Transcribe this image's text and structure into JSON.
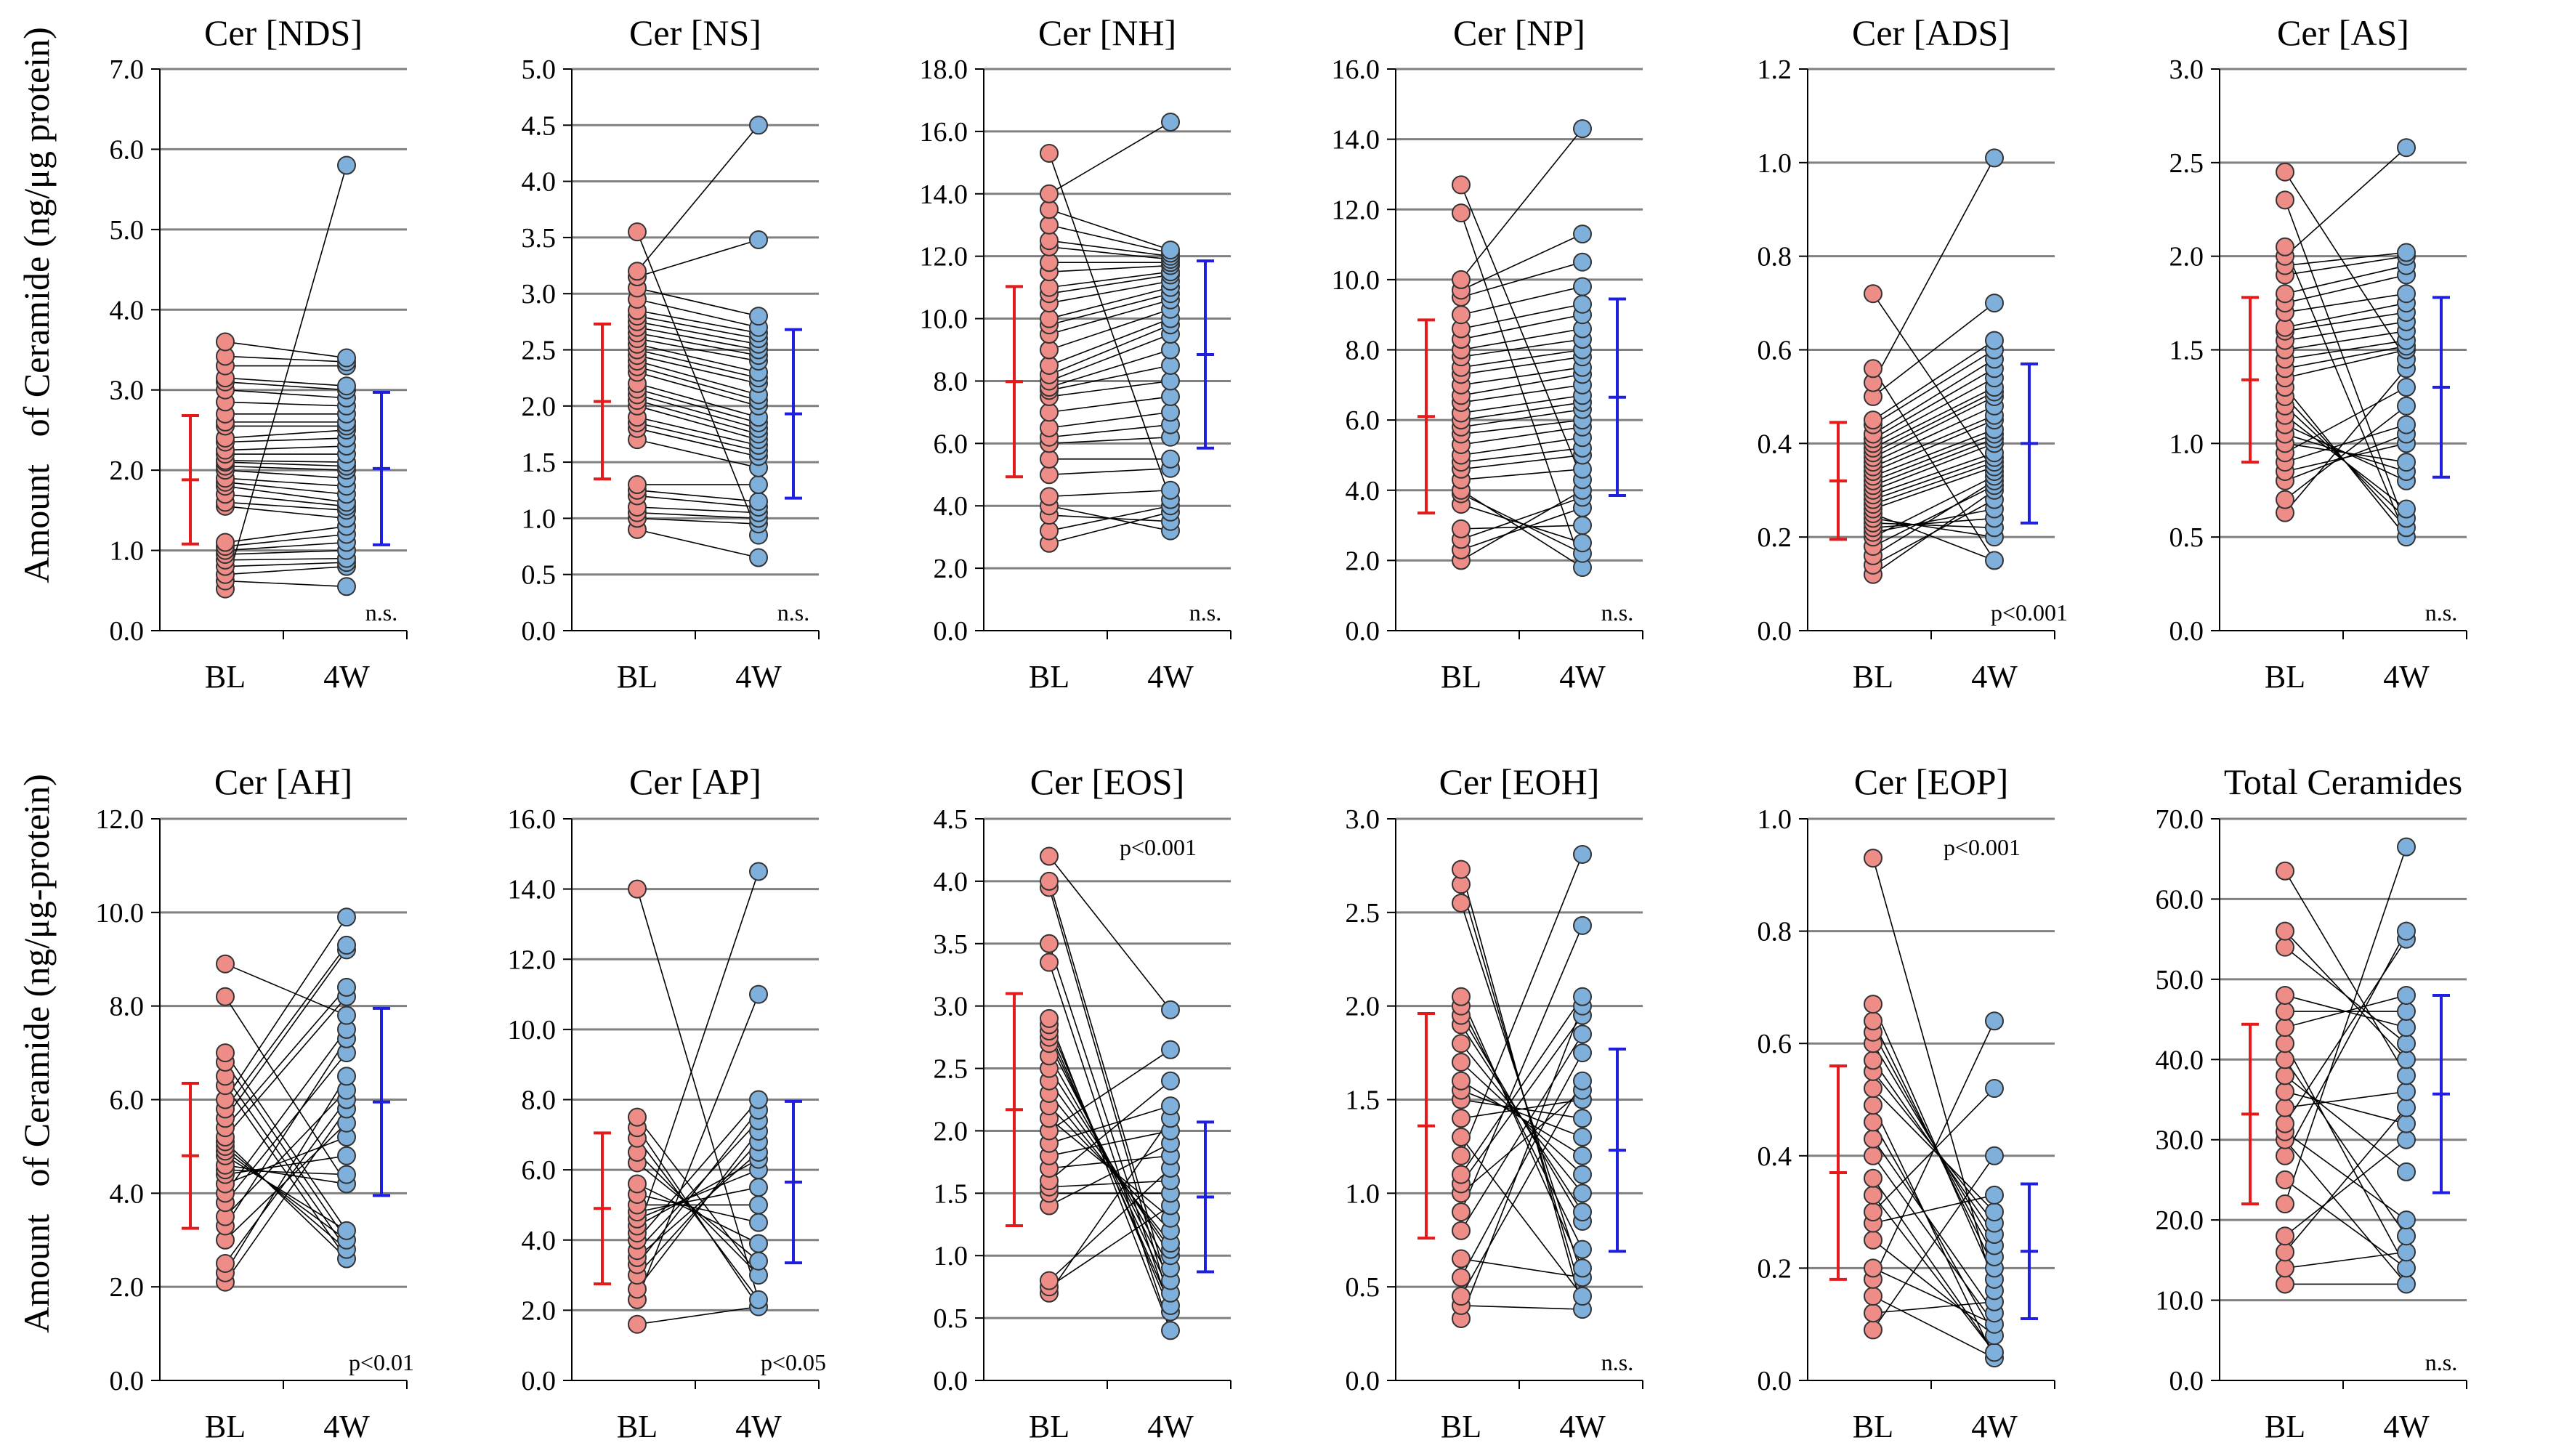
{
  "figure": {
    "ylabel_top": "Amount   of Ceramide (ng/μg protein)",
    "ylabel_bottom": "Amount   of Ceramide (ng/μg-protein)",
    "colors": {
      "bl_fill": "#ee8d88",
      "w4_fill": "#7fb0dc",
      "bl_bar": "#e41a1c",
      "w4_bar": "#1f1fe0",
      "line": "#000000",
      "grid": "#808080"
    }
  },
  "chart_data": [
    {
      "type": "scatter",
      "title": "Cer [NDS]",
      "categories": [
        "BL",
        "4W"
      ],
      "ylim": [
        0,
        7
      ],
      "yticks": [
        "0.0",
        "1.0",
        "2.0",
        "3.0",
        "4.0",
        "5.0",
        "6.0",
        "7.0"
      ],
      "annotation": "n.s.",
      "bl": [
        0.52,
        0.62,
        0.7,
        0.8,
        0.88,
        0.95,
        1.0,
        1.05,
        1.1,
        1.55,
        1.6,
        1.7,
        1.8,
        1.85,
        1.9,
        2.0,
        2.05,
        2.1,
        2.12,
        2.2,
        2.25,
        2.35,
        2.4,
        2.55,
        2.6,
        2.7,
        2.85,
        3.0,
        3.1,
        3.15,
        3.3,
        3.42,
        3.6
      ],
      "w4": [
        0.55,
        0.8,
        0.85,
        0.9,
        1.0,
        1.1,
        1.2,
        1.3,
        1.4,
        1.5,
        1.55,
        1.6,
        1.7,
        1.8,
        1.9,
        2.0,
        2.05,
        2.1,
        2.2,
        2.3,
        2.4,
        2.5,
        2.55,
        2.6,
        2.7,
        2.8,
        2.9,
        3.0,
        3.05,
        3.3,
        3.35,
        3.4,
        5.8
      ],
      "bl_mean": 1.88,
      "bl_sd": 0.8,
      "w4_mean": 2.02,
      "w4_sd": 0.95
    },
    {
      "type": "scatter",
      "title": "Cer [NS]",
      "categories": [
        "BL",
        "4W"
      ],
      "ylim": [
        0,
        5
      ],
      "yticks": [
        "0.0",
        "0.5",
        "1.0",
        "1.5",
        "2.0",
        "2.5",
        "3.0",
        "3.5",
        "4.0",
        "4.5",
        "5.0"
      ],
      "annotation": "n.s.",
      "bl": [
        0.9,
        1.0,
        1.05,
        1.1,
        1.2,
        1.25,
        1.3,
        1.7,
        1.8,
        1.85,
        1.9,
        2.0,
        2.05,
        2.1,
        2.15,
        2.2,
        2.3,
        2.35,
        2.4,
        2.45,
        2.5,
        2.55,
        2.6,
        2.65,
        2.7,
        2.75,
        2.8,
        2.85,
        2.95,
        3.05,
        3.15,
        3.2,
        3.55
      ],
      "w4": [
        0.65,
        0.85,
        0.95,
        1.0,
        1.05,
        1.1,
        1.15,
        1.3,
        1.45,
        1.55,
        1.6,
        1.65,
        1.7,
        1.75,
        1.8,
        1.85,
        1.9,
        2.0,
        2.05,
        2.1,
        2.2,
        2.25,
        2.3,
        2.4,
        2.45,
        2.5,
        2.55,
        2.6,
        2.65,
        2.7,
        2.8,
        3.48,
        4.5
      ],
      "bl_mean": 2.04,
      "bl_sd": 0.69,
      "w4_mean": 1.93,
      "w4_sd": 0.75
    },
    {
      "type": "scatter",
      "title": "Cer [NH]",
      "categories": [
        "BL",
        "4W"
      ],
      "ylim": [
        0,
        18
      ],
      "yticks": [
        "0.0",
        "2.0",
        "4.0",
        "6.0",
        "8.0",
        "10.0",
        "12.0",
        "14.0",
        "16.0",
        "18.0"
      ],
      "annotation": "n.s.",
      "bl": [
        2.8,
        3.2,
        3.7,
        4.0,
        4.3,
        5.0,
        5.5,
        6.0,
        6.2,
        6.5,
        7.0,
        7.5,
        7.7,
        7.8,
        8.0,
        8.2,
        8.5,
        9.0,
        9.5,
        9.8,
        10.0,
        10.5,
        10.8,
        11.0,
        11.5,
        11.8,
        12.3,
        12.5,
        13.0,
        13.5,
        14.0,
        15.3
      ],
      "w4": [
        3.2,
        3.5,
        3.8,
        4.0,
        4.2,
        4.5,
        5.2,
        5.5,
        6.2,
        6.6,
        7.0,
        7.5,
        8.0,
        8.5,
        9.0,
        9.5,
        9.8,
        10.0,
        10.3,
        10.6,
        10.8,
        11.0,
        11.2,
        11.4,
        11.5,
        11.7,
        11.8,
        11.9,
        12.0,
        12.1,
        12.2,
        16.3
      ],
      "bl_mean": 7.98,
      "bl_sd": 3.05,
      "w4_mean": 8.85,
      "w4_sd": 3.0
    },
    {
      "type": "scatter",
      "title": "Cer [NP]",
      "categories": [
        "BL",
        "4W"
      ],
      "ylim": [
        0,
        16
      ],
      "yticks": [
        "0.0",
        "2.0",
        "4.0",
        "6.0",
        "8.0",
        "10.0",
        "12.0",
        "14.0",
        "16.0"
      ],
      "annotation": "n.s.",
      "bl": [
        2.0,
        2.3,
        2.6,
        2.9,
        3.6,
        3.9,
        4.0,
        4.3,
        4.6,
        4.8,
        5.0,
        5.3,
        5.6,
        5.8,
        6.0,
        6.2,
        6.5,
        6.7,
        7.0,
        7.3,
        7.5,
        7.8,
        8.0,
        8.3,
        8.6,
        9.0,
        9.5,
        9.7,
        10.0,
        11.9,
        12.7
      ],
      "w4": [
        1.8,
        2.2,
        2.5,
        3.0,
        3.5,
        3.8,
        4.0,
        4.3,
        4.6,
        5.0,
        5.2,
        5.5,
        5.8,
        6.0,
        6.3,
        6.5,
        6.7,
        7.0,
        7.3,
        7.5,
        7.8,
        8.0,
        8.3,
        8.6,
        9.0,
        9.3,
        9.8,
        10.5,
        11.3,
        14.3
      ],
      "bl_mean": 6.1,
      "bl_sd": 2.75,
      "w4_mean": 6.65,
      "w4_sd": 2.8
    },
    {
      "type": "scatter",
      "title": "Cer [ADS]",
      "categories": [
        "BL",
        "4W"
      ],
      "ylim": [
        0,
        1.2
      ],
      "yticks": [
        "0.0",
        "0.2",
        "0.4",
        "0.6",
        "0.8",
        "1.0",
        "1.2"
      ],
      "annotation": "p<0.001",
      "bl": [
        0.12,
        0.14,
        0.16,
        0.18,
        0.2,
        0.21,
        0.22,
        0.23,
        0.24,
        0.25,
        0.26,
        0.27,
        0.28,
        0.29,
        0.3,
        0.31,
        0.32,
        0.33,
        0.34,
        0.35,
        0.36,
        0.37,
        0.38,
        0.39,
        0.4,
        0.41,
        0.42,
        0.44,
        0.45,
        0.5,
        0.53,
        0.56,
        0.72
      ],
      "w4": [
        0.15,
        0.2,
        0.22,
        0.24,
        0.26,
        0.28,
        0.3,
        0.31,
        0.32,
        0.33,
        0.34,
        0.35,
        0.36,
        0.37,
        0.38,
        0.4,
        0.41,
        0.42,
        0.43,
        0.45,
        0.46,
        0.48,
        0.5,
        0.51,
        0.52,
        0.54,
        0.56,
        0.58,
        0.6,
        0.62,
        0.7,
        1.01
      ],
      "bl_mean": 0.32,
      "bl_sd": 0.125,
      "w4_mean": 0.4,
      "w4_sd": 0.17
    },
    {
      "type": "scatter",
      "title": "Cer [AS]",
      "categories": [
        "BL",
        "4W"
      ],
      "ylim": [
        0,
        3
      ],
      "yticks": [
        "0.0",
        "0.5",
        "1.0",
        "1.5",
        "2.0",
        "2.5",
        "3.0"
      ],
      "annotation": "n.s.",
      "bl": [
        0.63,
        0.7,
        0.8,
        0.85,
        0.9,
        0.95,
        1.0,
        1.05,
        1.1,
        1.15,
        1.2,
        1.25,
        1.3,
        1.35,
        1.4,
        1.45,
        1.5,
        1.55,
        1.6,
        1.62,
        1.7,
        1.75,
        1.8,
        1.9,
        1.95,
        2.0,
        2.05,
        2.3,
        2.45
      ],
      "w4": [
        0.5,
        0.55,
        0.6,
        0.65,
        0.8,
        0.85,
        0.9,
        1.0,
        1.05,
        1.1,
        1.2,
        1.3,
        1.4,
        1.45,
        1.5,
        1.52,
        1.55,
        1.6,
        1.65,
        1.7,
        1.75,
        1.8,
        1.9,
        1.95,
        2.0,
        2.02,
        2.58
      ],
      "bl_mean": 1.34,
      "bl_sd": 0.44,
      "w4_mean": 1.3,
      "w4_sd": 0.48
    },
    {
      "type": "scatter",
      "title": "Cer [AH]",
      "categories": [
        "BL",
        "4W"
      ],
      "ylim": [
        0,
        12
      ],
      "yticks": [
        "0.0",
        "2.0",
        "4.0",
        "6.0",
        "8.0",
        "10.0",
        "12.0"
      ],
      "annotation": "p<0.01",
      "bl": [
        2.1,
        2.3,
        2.5,
        3.0,
        3.3,
        3.5,
        3.8,
        4.0,
        4.2,
        4.4,
        4.5,
        4.6,
        4.8,
        4.9,
        5.0,
        5.1,
        5.2,
        5.4,
        5.6,
        5.8,
        6.0,
        6.3,
        6.5,
        6.8,
        7.0,
        8.2,
        8.9
      ],
      "w4": [
        2.6,
        2.8,
        3.0,
        3.2,
        4.2,
        4.4,
        4.8,
        5.2,
        5.5,
        5.8,
        6.0,
        6.2,
        6.5,
        7.0,
        7.3,
        7.5,
        7.8,
        8.2,
        8.4,
        9.2,
        9.3,
        9.9
      ],
      "bl_mean": 4.8,
      "bl_sd": 1.55,
      "w4_mean": 5.95,
      "w4_sd": 2.0
    },
    {
      "type": "scatter",
      "title": "Cer [AP]",
      "categories": [
        "BL",
        "4W"
      ],
      "ylim": [
        0,
        16
      ],
      "yticks": [
        "0.0",
        "2.0",
        "4.0",
        "6.0",
        "8.0",
        "10.0",
        "12.0",
        "14.0",
        "16.0"
      ],
      "annotation": "p<0.05",
      "bl": [
        1.6,
        2.3,
        2.6,
        3.0,
        3.3,
        3.5,
        3.7,
        4.0,
        4.2,
        4.4,
        4.6,
        4.8,
        5.0,
        5.3,
        5.6,
        6.2,
        6.5,
        6.9,
        7.2,
        7.5,
        14.0
      ],
      "w4": [
        2.1,
        2.3,
        3.0,
        3.4,
        3.9,
        4.5,
        5.0,
        5.5,
        6.0,
        6.3,
        6.5,
        6.8,
        7.1,
        7.4,
        7.7,
        8.0,
        11.0,
        14.5
      ],
      "bl_mean": 4.9,
      "bl_sd": 2.15,
      "w4_mean": 5.65,
      "w4_sd": 2.3
    },
    {
      "type": "scatter",
      "title": "Cer [EOS]",
      "categories": [
        "BL",
        "4W"
      ],
      "ylim": [
        0,
        4.5
      ],
      "yticks": [
        "0.0",
        "0.5",
        "1.0",
        "1.5",
        "2.0",
        "2.5",
        "3.0",
        "3.5",
        "4.0",
        "4.5"
      ],
      "annotation": "p<0.001",
      "bl": [
        0.7,
        0.75,
        0.8,
        1.4,
        1.5,
        1.55,
        1.6,
        1.7,
        1.8,
        1.9,
        2.0,
        2.1,
        2.2,
        2.3,
        2.4,
        2.5,
        2.6,
        2.7,
        2.75,
        2.8,
        2.85,
        2.9,
        3.35,
        3.5,
        3.95,
        4.0,
        4.2
      ],
      "w4": [
        0.4,
        0.55,
        0.6,
        0.7,
        0.8,
        0.9,
        1.0,
        1.05,
        1.1,
        1.2,
        1.3,
        1.4,
        1.5,
        1.6,
        1.7,
        1.8,
        1.9,
        2.0,
        2.1,
        2.2,
        2.4,
        2.65,
        2.97
      ],
      "bl_mean": 2.17,
      "bl_sd": 0.93,
      "w4_mean": 1.47,
      "w4_sd": 0.6
    },
    {
      "type": "scatter",
      "title": "Cer [EOH]",
      "categories": [
        "BL",
        "4W"
      ],
      "ylim": [
        0,
        3
      ],
      "yticks": [
        "0.0",
        "0.5",
        "1.0",
        "1.5",
        "2.0",
        "2.5",
        "3.0"
      ],
      "annotation": "n.s.",
      "bl": [
        0.33,
        0.4,
        0.45,
        0.55,
        0.65,
        0.8,
        0.9,
        1.0,
        1.05,
        1.1,
        1.2,
        1.3,
        1.4,
        1.5,
        1.55,
        1.6,
        1.7,
        1.8,
        1.9,
        1.95,
        2.0,
        2.05,
        2.55,
        2.65,
        2.73
      ],
      "w4": [
        0.38,
        0.45,
        0.55,
        0.6,
        0.7,
        0.85,
        0.9,
        1.0,
        1.1,
        1.2,
        1.3,
        1.4,
        1.5,
        1.55,
        1.6,
        1.75,
        1.85,
        1.95,
        2.0,
        2.05,
        2.43,
        2.81
      ],
      "bl_mean": 1.36,
      "bl_sd": 0.6,
      "w4_mean": 1.23,
      "w4_sd": 0.54
    },
    {
      "type": "scatter",
      "title": "Cer [EOP]",
      "categories": [
        "BL",
        "4W"
      ],
      "ylim": [
        0,
        1
      ],
      "yticks": [
        "0.0",
        "0.2",
        "0.4",
        "0.6",
        "0.8",
        "1.0"
      ],
      "annotation": "p<0.001",
      "bl": [
        0.09,
        0.12,
        0.15,
        0.18,
        0.2,
        0.25,
        0.28,
        0.3,
        0.33,
        0.36,
        0.4,
        0.43,
        0.46,
        0.49,
        0.52,
        0.55,
        0.57,
        0.6,
        0.62,
        0.64,
        0.67,
        0.93
      ],
      "w4": [
        0.04,
        0.05,
        0.08,
        0.1,
        0.12,
        0.14,
        0.16,
        0.18,
        0.2,
        0.22,
        0.24,
        0.26,
        0.28,
        0.3,
        0.33,
        0.4,
        0.52,
        0.64
      ],
      "bl_mean": 0.37,
      "bl_sd": 0.19,
      "w4_mean": 0.23,
      "w4_sd": 0.12
    },
    {
      "type": "scatter",
      "title": "Total Ceramides",
      "categories": [
        "BL",
        "4W"
      ],
      "ylim": [
        0,
        70
      ],
      "yticks": [
        "0.0",
        "10.0",
        "20.0",
        "30.0",
        "40.0",
        "50.0",
        "60.0",
        "70.0"
      ],
      "annotation": "n.s.",
      "bl": [
        12.0,
        14.0,
        16.0,
        18.0,
        22.0,
        25.0,
        28.0,
        30.0,
        31.0,
        32.0,
        34.0,
        36.0,
        38.0,
        40.0,
        42.0,
        44.0,
        46.0,
        48.0,
        54.0,
        56.0,
        63.5
      ],
      "w4": [
        12.0,
        14.0,
        16.0,
        18.0,
        20.0,
        26.0,
        30.0,
        32.0,
        34.0,
        36.0,
        38.0,
        40.0,
        42.0,
        44.0,
        46.0,
        48.0,
        55.0,
        56.0,
        66.5
      ],
      "bl_mean": 33.2,
      "bl_sd": 11.2,
      "w4_mean": 35.7,
      "w4_sd": 12.3
    }
  ]
}
